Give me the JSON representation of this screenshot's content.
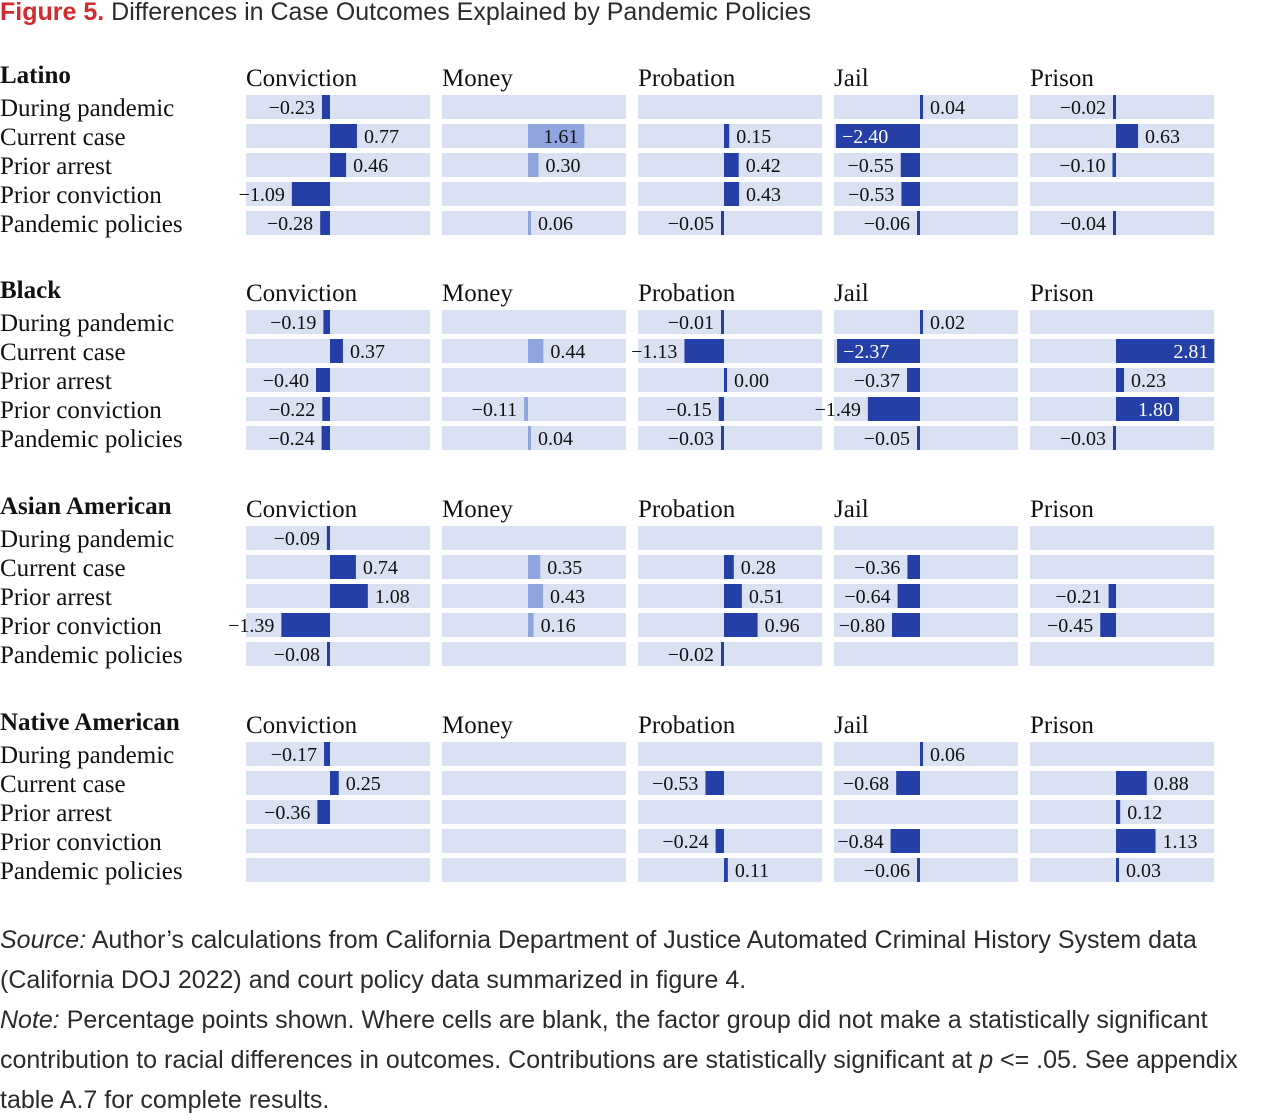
{
  "figure": {
    "label": "Figure 5.",
    "title": "Differences in Case Outcomes Explained by Pandemic Policies"
  },
  "colors": {
    "cell_bg": "#dae1f2",
    "bar_dark": "#2440a6",
    "bar_light": "#8ea6dd",
    "text_on_dark": "#ffffff",
    "text": "#111111"
  },
  "chart_data": {
    "type": "bar",
    "units": "Percentage points",
    "columns": [
      "Conviction",
      "Money",
      "Probation",
      "Jail",
      "Prison"
    ],
    "rows": [
      "During pandemic",
      "Current case",
      "Prior arrest",
      "Prior conviction",
      "Pandemic policies"
    ],
    "light_color_columns": [
      "Money"
    ],
    "groups": [
      {
        "name": "Latino",
        "values": [
          [
            -0.23,
            null,
            null,
            0.04,
            -0.02
          ],
          [
            0.77,
            1.61,
            0.15,
            -2.4,
            0.63
          ],
          [
            0.46,
            0.3,
            0.42,
            -0.55,
            -0.1
          ],
          [
            -1.09,
            null,
            0.43,
            -0.53,
            null
          ],
          [
            -0.28,
            0.06,
            -0.05,
            -0.06,
            -0.04
          ]
        ],
        "labels": [
          [
            "−0.23",
            "",
            "",
            "0.04",
            "−0.02"
          ],
          [
            "0.77",
            "1.61",
            "0.15",
            "−2.40",
            "0.63"
          ],
          [
            "0.46",
            "0.30",
            "0.42",
            "−0.55",
            "−0.10"
          ],
          [
            "−1.09",
            "",
            "0.43",
            "−0.53",
            ""
          ],
          [
            "−0.28",
            "0.06",
            "−0.05",
            "−0.06",
            "−0.04"
          ]
        ]
      },
      {
        "name": "Black",
        "values": [
          [
            -0.19,
            null,
            -0.01,
            0.02,
            null
          ],
          [
            0.37,
            0.44,
            -1.13,
            -2.37,
            2.81
          ],
          [
            -0.4,
            null,
            0.0,
            -0.37,
            0.23
          ],
          [
            -0.22,
            -0.11,
            -0.15,
            -1.49,
            1.8
          ],
          [
            -0.24,
            0.04,
            -0.03,
            -0.05,
            -0.03
          ]
        ],
        "labels": [
          [
            "−0.19",
            "",
            "−0.01",
            "0.02",
            ""
          ],
          [
            "0.37",
            "0.44",
            "−1.13",
            "−2.37",
            "2.81"
          ],
          [
            "−0.40",
            "",
            "0.00",
            "−0.37",
            "0.23"
          ],
          [
            "−0.22",
            "−0.11",
            "−0.15",
            "−1.49",
            "1.80"
          ],
          [
            "−0.24",
            "0.04",
            "−0.03",
            "−0.05",
            "−0.03"
          ]
        ]
      },
      {
        "name": "Asian American",
        "values": [
          [
            -0.09,
            null,
            null,
            null,
            null
          ],
          [
            0.74,
            0.35,
            0.28,
            -0.36,
            null
          ],
          [
            1.08,
            0.43,
            0.51,
            -0.64,
            -0.21
          ],
          [
            -1.39,
            0.16,
            0.96,
            -0.8,
            -0.45
          ],
          [
            -0.08,
            null,
            -0.02,
            null,
            null
          ]
        ],
        "labels": [
          [
            "−0.09",
            "",
            "",
            "",
            ""
          ],
          [
            "0.74",
            "0.35",
            "0.28",
            "−0.36",
            ""
          ],
          [
            "1.08",
            "0.43",
            "0.51",
            "−0.64",
            "−0.21"
          ],
          [
            "−1.39",
            "0.16",
            "0.96",
            "−0.80",
            "−0.45"
          ],
          [
            "−0.08",
            "",
            "−0.02",
            "",
            ""
          ]
        ]
      },
      {
        "name": "Native American",
        "values": [
          [
            -0.17,
            null,
            null,
            0.06,
            null
          ],
          [
            0.25,
            null,
            -0.53,
            -0.68,
            0.88
          ],
          [
            -0.36,
            null,
            null,
            null,
            0.12
          ],
          [
            null,
            null,
            -0.24,
            -0.84,
            1.13
          ],
          [
            null,
            null,
            0.11,
            -0.06,
            0.03
          ]
        ],
        "labels": [
          [
            "−0.17",
            "",
            "",
            "0.06",
            ""
          ],
          [
            "0.25",
            "",
            "−0.53",
            "−0.68",
            "0.88"
          ],
          [
            "−0.36",
            "",
            "",
            "",
            "0.12"
          ],
          [
            "",
            "",
            "−0.24",
            "−0.84",
            "1.13"
          ],
          [
            "",
            "",
            "0.11",
            "−0.06",
            "0.03"
          ]
        ]
      }
    ]
  },
  "footer": {
    "source_label": "Source:",
    "source_text": " Author’s calculations from California Department of Justice Automated Criminal History System data (California DOJ 2022) and court policy data summarized in figure 4.",
    "note_label": "Note:",
    "note_text": " Percentage points shown. Where cells are blank, the factor group did not make a statistically significant contribution to racial differences in outcomes. Contributions are statistically significant at ",
    "note_p": "p",
    "note_end": " <= .05. See appendix table A.7 for complete results."
  }
}
